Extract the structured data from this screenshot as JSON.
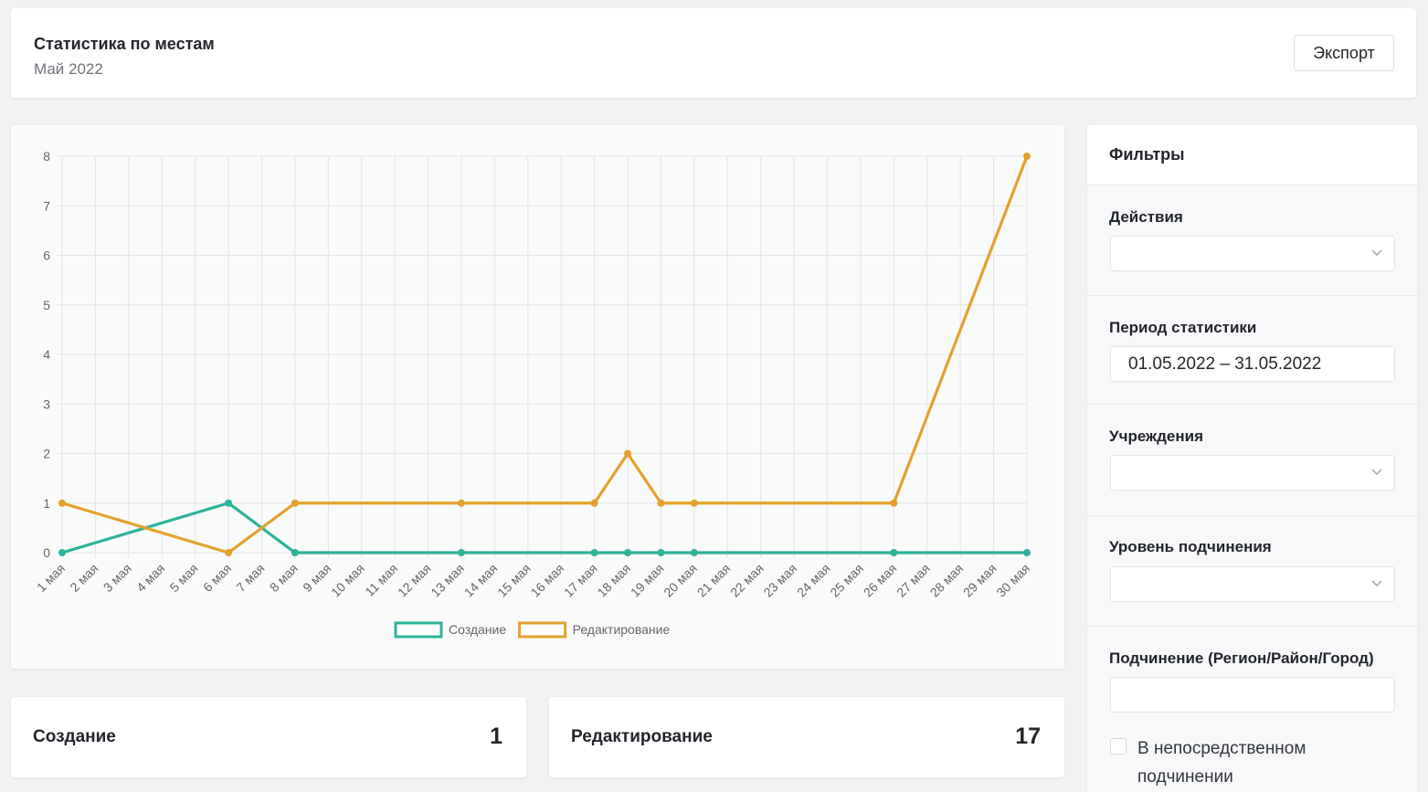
{
  "header": {
    "title": "Статистика по местам",
    "subtitle": "Май 2022",
    "export_label": "Экспорт"
  },
  "chart_data": {
    "type": "line",
    "categories": [
      "1 мая",
      "2 мая",
      "3 мая",
      "4 мая",
      "5 мая",
      "6 мая",
      "7 мая",
      "8 мая",
      "9 мая",
      "10 мая",
      "11 мая",
      "12 мая",
      "13 мая",
      "14 мая",
      "15 мая",
      "16 мая",
      "17 мая",
      "18 мая",
      "19 мая",
      "20 мая",
      "21 мая",
      "22 мая",
      "23 мая",
      "24 мая",
      "25 мая",
      "26 мая",
      "27 мая",
      "28 мая",
      "29 мая",
      "30 мая"
    ],
    "y_ticks": [
      0,
      1,
      2,
      3,
      4,
      5,
      6,
      7,
      8
    ],
    "ylim": [
      0,
      8
    ],
    "grid": true,
    "legend_position": "bottom",
    "series": [
      {
        "name": "Создание",
        "color": "#2db39a",
        "points": [
          [
            "1 мая",
            0
          ],
          [
            "6 мая",
            1
          ],
          [
            "8 мая",
            0
          ],
          [
            "13 мая",
            0
          ],
          [
            "17 мая",
            0
          ],
          [
            "18 мая",
            0
          ],
          [
            "19 мая",
            0
          ],
          [
            "20 мая",
            0
          ],
          [
            "26 мая",
            0
          ],
          [
            "30 мая",
            0
          ]
        ]
      },
      {
        "name": "Редактирование",
        "color": "#e5a12d",
        "points": [
          [
            "1 мая",
            1
          ],
          [
            "6 мая",
            0
          ],
          [
            "8 мая",
            1
          ],
          [
            "13 мая",
            1
          ],
          [
            "17 мая",
            1
          ],
          [
            "18 мая",
            2
          ],
          [
            "19 мая",
            1
          ],
          [
            "20 мая",
            1
          ],
          [
            "26 мая",
            1
          ],
          [
            "30 мая",
            8
          ]
        ]
      }
    ]
  },
  "stats": {
    "create_label": "Создание",
    "create_value": "1",
    "edit_label": "Редактирование",
    "edit_value": "17"
  },
  "filters": {
    "title": "Фильтры",
    "actions_label": "Действия",
    "actions_value": "",
    "period_label": "Период статистики",
    "period_value": "01.05.2022 – 31.05.2022",
    "institutions_label": "Учреждения",
    "institutions_value": "",
    "level_label": "Уровень подчинения",
    "level_value": "",
    "subordination_label": "Подчинение (Регион/Район/Город)",
    "subordination_value": "",
    "direct_label": "В непосредственном подчинении",
    "direct_checked": false
  }
}
